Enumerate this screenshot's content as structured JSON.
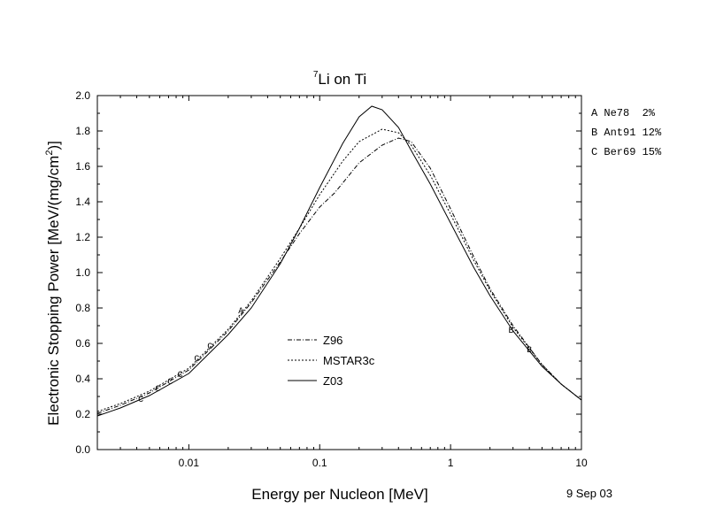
{
  "chart_data": {
    "type": "line",
    "title": {
      "superscript": "7",
      "main": "Li on Ti"
    },
    "xlabel": "Energy per Nucleon [MeV]",
    "ylabel": {
      "main": "Electronic Stopping Power [MeV/(mg/cm",
      "superscript": "2",
      "suffix": ")]"
    },
    "x_scale": "log",
    "xlim": [
      0.002,
      10
    ],
    "ylim": [
      0.0,
      2.0
    ],
    "x_ticks": [
      {
        "value": 0.01,
        "label": "0.01"
      },
      {
        "value": 0.1,
        "label": "0.1"
      },
      {
        "value": 1,
        "label": "1"
      },
      {
        "value": 10,
        "label": "10"
      }
    ],
    "y_ticks": [
      "0.0",
      "0.2",
      "0.4",
      "0.6",
      "0.8",
      "1.0",
      "1.2",
      "1.4",
      "1.6",
      "1.8",
      "2.0"
    ],
    "legend": {
      "position": "lower-center",
      "entries": [
        {
          "label": "Z96",
          "style": "dash-dot"
        },
        {
          "label": "MSTAR3c",
          "style": "dotted"
        },
        {
          "label": "Z03",
          "style": "solid"
        }
      ]
    },
    "series": [
      {
        "name": "Z96",
        "style": "dash-dot",
        "points": [
          [
            0.002,
            0.205
          ],
          [
            0.003,
            0.25
          ],
          [
            0.005,
            0.32
          ],
          [
            0.01,
            0.45
          ],
          [
            0.02,
            0.67
          ],
          [
            0.03,
            0.83
          ],
          [
            0.05,
            1.06
          ],
          [
            0.07,
            1.22
          ],
          [
            0.1,
            1.37
          ],
          [
            0.13,
            1.45
          ],
          [
            0.2,
            1.62
          ],
          [
            0.3,
            1.72
          ],
          [
            0.4,
            1.76
          ],
          [
            0.5,
            1.74
          ],
          [
            0.7,
            1.59
          ],
          [
            1,
            1.36
          ],
          [
            1.5,
            1.09
          ],
          [
            2,
            0.91
          ],
          [
            3,
            0.7
          ],
          [
            5,
            0.48
          ],
          [
            7,
            0.37
          ],
          [
            10,
            0.28
          ]
        ]
      },
      {
        "name": "MSTAR3c",
        "style": "dotted",
        "points": [
          [
            0.002,
            0.215
          ],
          [
            0.003,
            0.26
          ],
          [
            0.005,
            0.33
          ],
          [
            0.01,
            0.46
          ],
          [
            0.02,
            0.68
          ],
          [
            0.03,
            0.84
          ],
          [
            0.05,
            1.08
          ],
          [
            0.07,
            1.25
          ],
          [
            0.1,
            1.44
          ],
          [
            0.15,
            1.63
          ],
          [
            0.2,
            1.74
          ],
          [
            0.3,
            1.81
          ],
          [
            0.4,
            1.79
          ],
          [
            0.5,
            1.72
          ],
          [
            0.7,
            1.55
          ],
          [
            1,
            1.33
          ],
          [
            1.5,
            1.07
          ],
          [
            2,
            0.9
          ],
          [
            3,
            0.69
          ],
          [
            5,
            0.48
          ],
          [
            7,
            0.37
          ],
          [
            10,
            0.28
          ]
        ]
      },
      {
        "name": "Z03",
        "style": "solid",
        "points": [
          [
            0.002,
            0.19
          ],
          [
            0.003,
            0.235
          ],
          [
            0.005,
            0.305
          ],
          [
            0.01,
            0.43
          ],
          [
            0.02,
            0.65
          ],
          [
            0.03,
            0.8
          ],
          [
            0.05,
            1.05
          ],
          [
            0.07,
            1.25
          ],
          [
            0.1,
            1.48
          ],
          [
            0.15,
            1.73
          ],
          [
            0.2,
            1.88
          ],
          [
            0.25,
            1.94
          ],
          [
            0.3,
            1.92
          ],
          [
            0.4,
            1.82
          ],
          [
            0.5,
            1.69
          ],
          [
            0.7,
            1.5
          ],
          [
            1,
            1.28
          ],
          [
            1.5,
            1.03
          ],
          [
            2,
            0.87
          ],
          [
            3,
            0.67
          ],
          [
            5,
            0.47
          ],
          [
            7,
            0.37
          ],
          [
            10,
            0.28
          ]
        ]
      }
    ],
    "data_points": [
      {
        "marker": "C",
        "x": 0.0043,
        "y": 0.29
      },
      {
        "marker": "C",
        "x": 0.0058,
        "y": 0.35
      },
      {
        "marker": "C",
        "x": 0.0072,
        "y": 0.39
      },
      {
        "marker": "C",
        "x": 0.0086,
        "y": 0.43
      },
      {
        "marker": "C",
        "x": 0.0115,
        "y": 0.52
      },
      {
        "marker": "C",
        "x": 0.0145,
        "y": 0.59
      },
      {
        "marker": "A",
        "x": 0.025,
        "y": 0.79
      },
      {
        "marker": "B",
        "x": 2.9,
        "y": 0.68
      },
      {
        "marker": "B",
        "x": 4.0,
        "y": 0.57
      }
    ],
    "dataset_key": [
      {
        "text": "A Ne78  2%"
      },
      {
        "text": "B Ant91 12%"
      },
      {
        "text": "C Ber69 15%"
      }
    ],
    "date_label": "9 Sep 03"
  }
}
